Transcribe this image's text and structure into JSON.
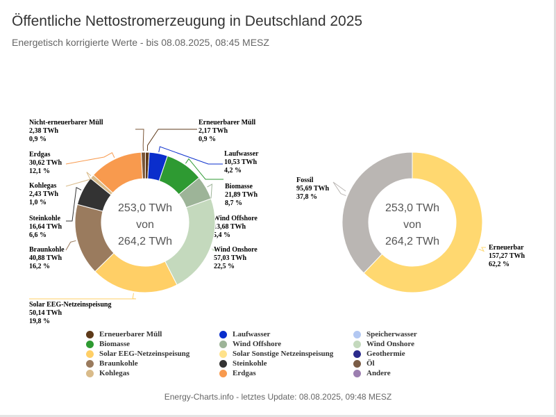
{
  "header": {
    "title": "Öffentliche Nettostromerzeugung in Deutschland 2025",
    "subtitle": "Energetisch korrigierte Werte - bis 08.08.2025, 08:45 MESZ"
  },
  "footer": {
    "text": "Energy-Charts.info - letztes Update: 08.08.2025, 09:48 MESZ"
  },
  "chart_data": [
    {
      "type": "pie",
      "variant": "donut",
      "center_lines": [
        "253,0 TWh",
        "von",
        "264,2 TWh"
      ],
      "slices": [
        {
          "name": "Erneuerbarer Müll",
          "value": 2.17,
          "value_label": "2,17 TWh",
          "percent_label": "0,9 %",
          "color": "#5e3a1a"
        },
        {
          "name": "Laufwasser",
          "value": 10.53,
          "value_label": "10,53 TWh",
          "percent_label": "4,2 %",
          "color": "#0a2ecc"
        },
        {
          "name": "Biomasse",
          "value": 21.89,
          "value_label": "21,89 TWh",
          "percent_label": "8,7 %",
          "color": "#2e9a32"
        },
        {
          "name": "Wind Offshore",
          "value": 13.68,
          "value_label": "13,68 TWh",
          "percent_label": "5,4 %",
          "color": "#9db498"
        },
        {
          "name": "Wind Onshore",
          "value": 57.03,
          "value_label": "57,03 TWh",
          "percent_label": "22,5 %",
          "color": "#c4d9bd"
        },
        {
          "name": "Solar EEG-Netzeinspeisung",
          "value": 50.14,
          "value_label": "50,14 TWh",
          "percent_label": "19,8 %",
          "color": "#ffcf66"
        },
        {
          "name": "Braunkohle",
          "value": 40.88,
          "value_label": "40,88 TWh",
          "percent_label": "16,2 %",
          "color": "#9a7b5e"
        },
        {
          "name": "Steinkohle",
          "value": 16.64,
          "value_label": "16,64 TWh",
          "percent_label": "6,6 %",
          "color": "#333333"
        },
        {
          "name": "Kohlegas",
          "value": 2.43,
          "value_label": "2,43 TWh",
          "percent_label": "1,0 %",
          "color": "#d9bb8a"
        },
        {
          "name": "Erdgas",
          "value": 30.62,
          "value_label": "30,62 TWh",
          "percent_label": "12,1 %",
          "color": "#f89a4e"
        },
        {
          "name": "Nicht-erneuerbarer Müll",
          "value": 2.38,
          "value_label": "2,38 TWh",
          "percent_label": "0,9 %",
          "color": "#7a5535"
        }
      ]
    },
    {
      "type": "pie",
      "variant": "donut",
      "center_lines": [
        "253,0 TWh",
        "von",
        "264,2 TWh"
      ],
      "slices": [
        {
          "name": "Erneuerbar",
          "value": 157.27,
          "value_label": "157,27 TWh",
          "percent_label": "62,2 %",
          "color": "#ffd870"
        },
        {
          "name": "Fossil",
          "value": 95.69,
          "value_label": "95,69 TWh",
          "percent_label": "37,8 %",
          "color": "#bab6b3"
        }
      ]
    }
  ],
  "legend": {
    "items": [
      {
        "label": "Erneuerbarer Müll",
        "color": "#5e3a1a"
      },
      {
        "label": "Laufwasser",
        "color": "#0a2ecc"
      },
      {
        "label": "Speicherwasser",
        "color": "#b3c8f2"
      },
      {
        "label": "Biomasse",
        "color": "#2e9a32"
      },
      {
        "label": "Wind Offshore",
        "color": "#9db498"
      },
      {
        "label": "Wind Onshore",
        "color": "#c4d9bd"
      },
      {
        "label": "Solar EEG-Netzeinspeisung",
        "color": "#ffcf66"
      },
      {
        "label": "Solar Sonstige Netzeinspeisung",
        "color": "#ffe28a"
      },
      {
        "label": "Geothermie",
        "color": "#2b2b8c"
      },
      {
        "label": "Braunkohle",
        "color": "#9a7b5e"
      },
      {
        "label": "Steinkohle",
        "color": "#333333"
      },
      {
        "label": "Öl",
        "color": "#7a5c46"
      },
      {
        "label": "Kohlegas",
        "color": "#d9bb8a"
      },
      {
        "label": "Erdgas",
        "color": "#f89a4e"
      },
      {
        "label": "Andere",
        "color": "#9c7fb0"
      }
    ]
  }
}
